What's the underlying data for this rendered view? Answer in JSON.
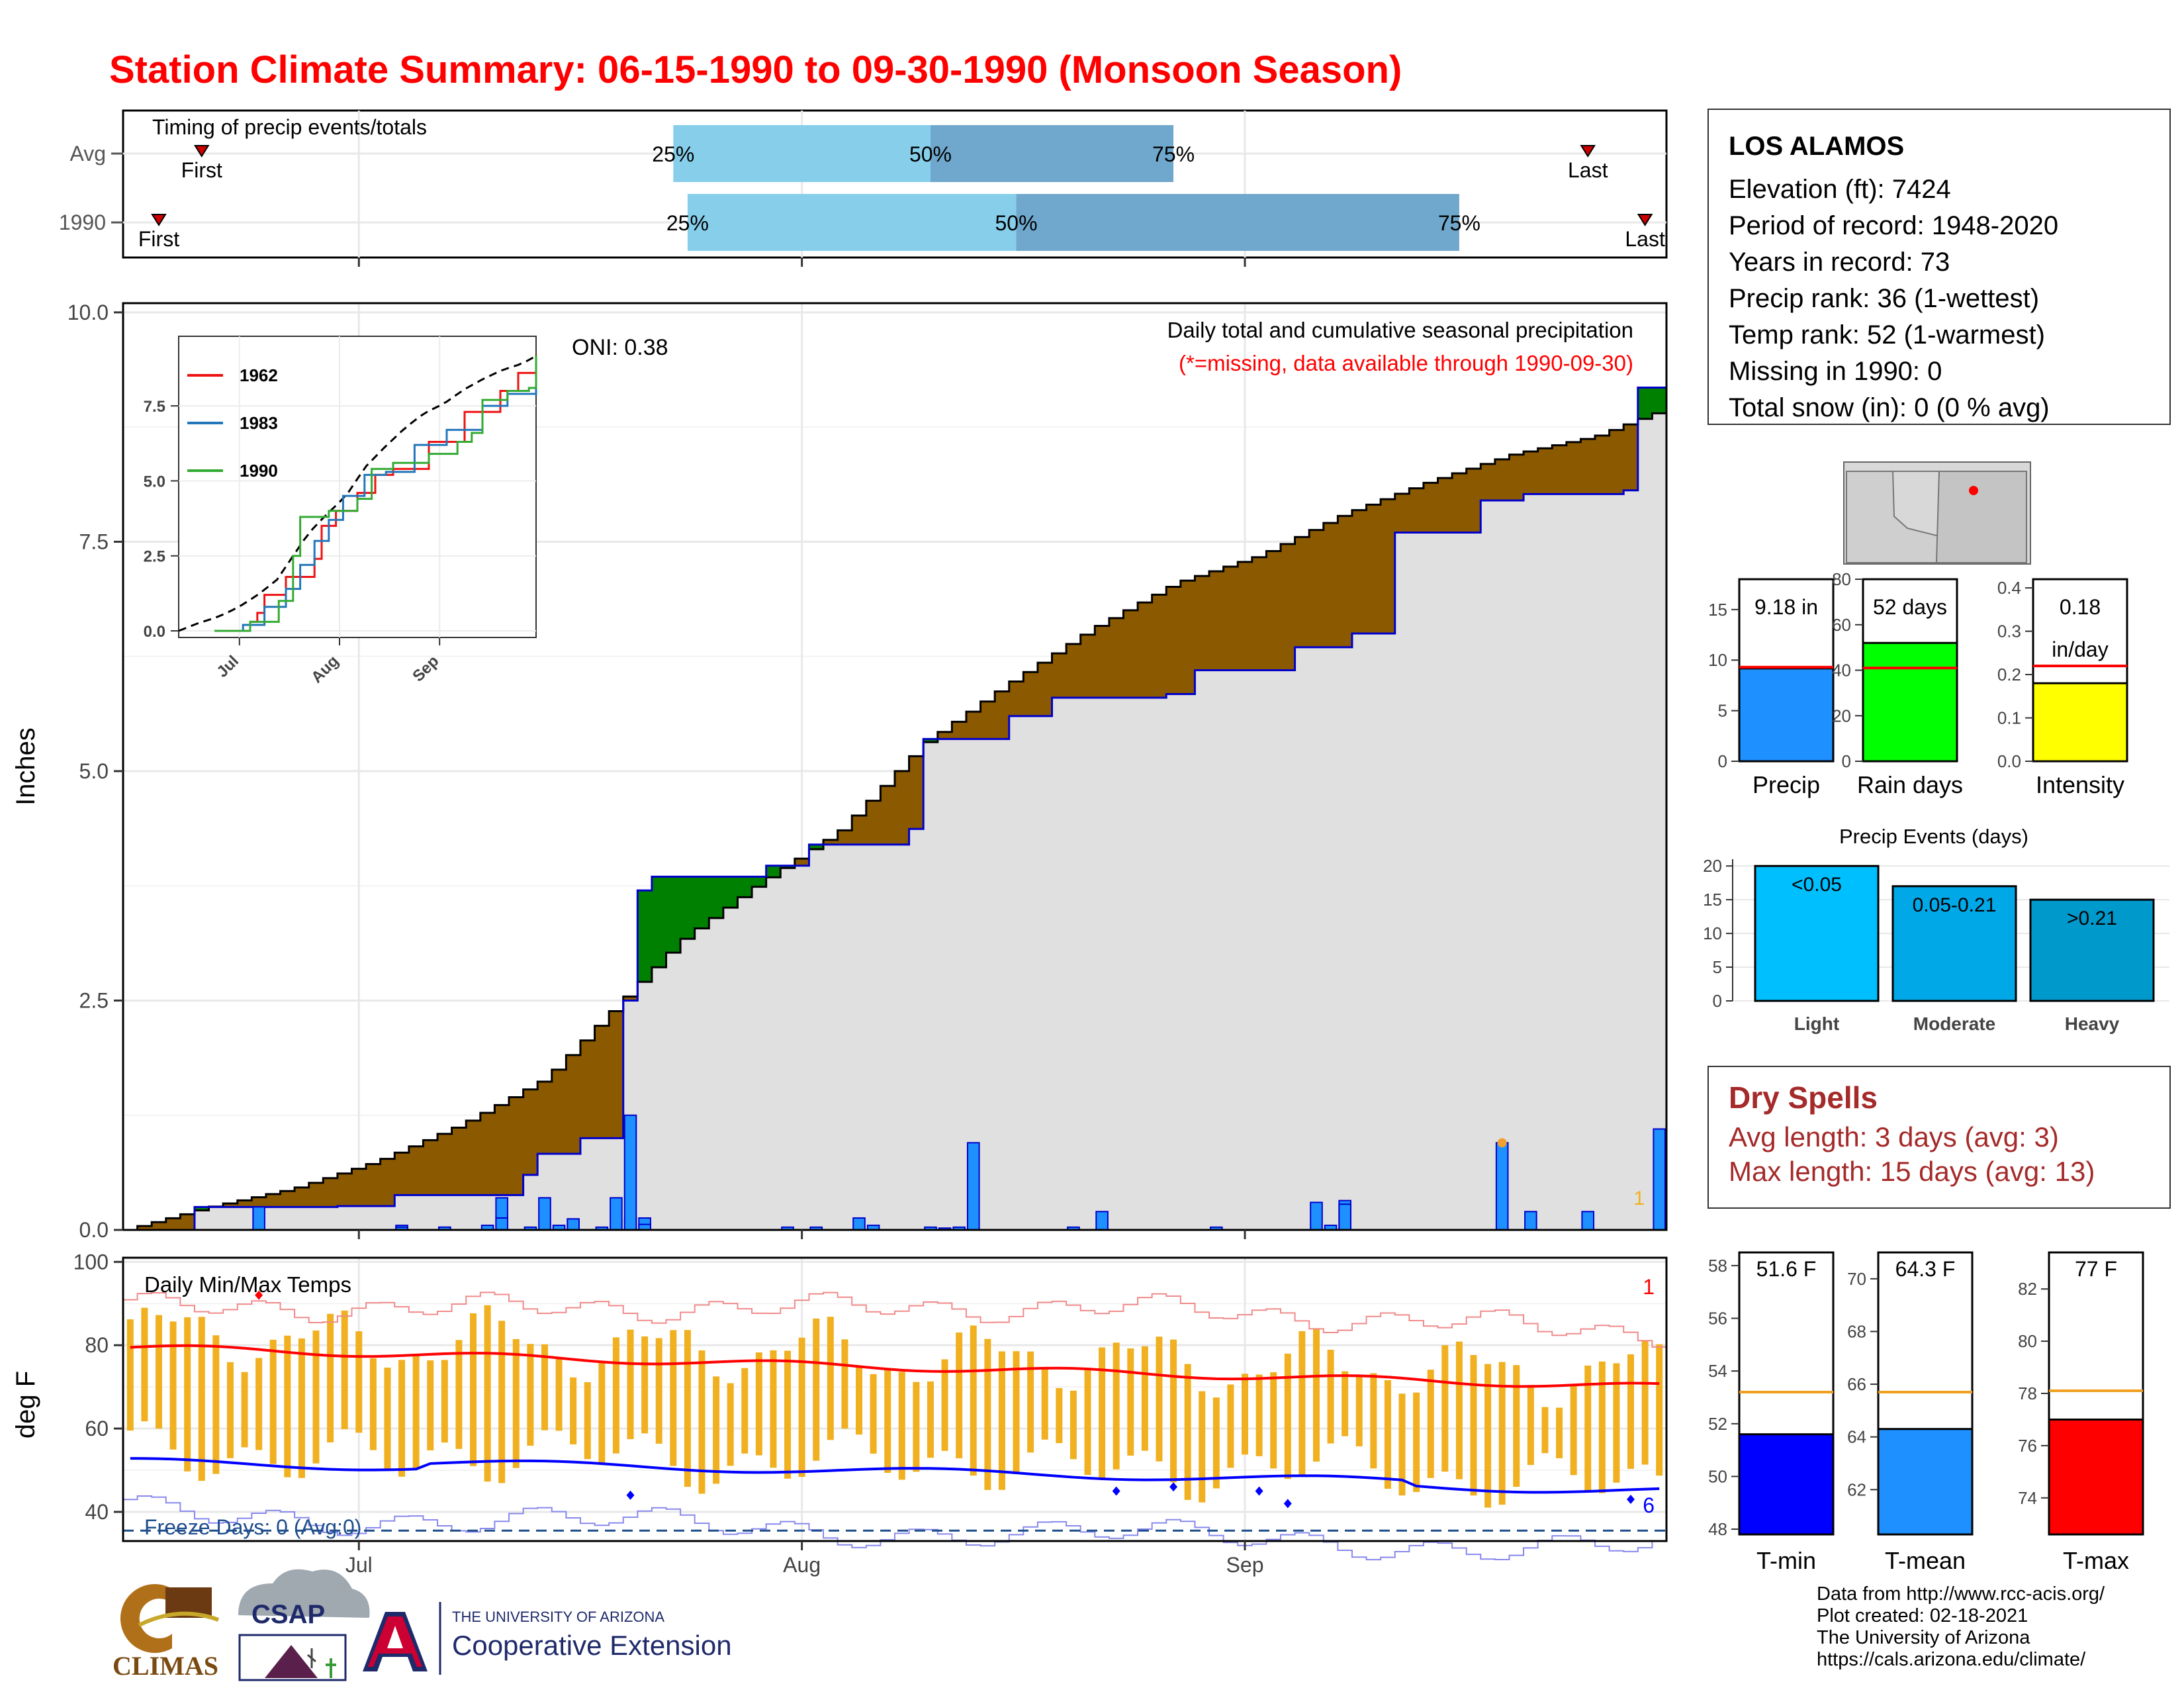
{
  "title": "Station Climate Summary: 06-15-1990 to 09-30-1990 (Monsoon Season)",
  "colors": {
    "title": "#ff0000",
    "cumulative_above": "#008000",
    "cumulative_below": "#8b5a00",
    "daily_bar": "#1e90ff",
    "bar_outline": "#0000cc",
    "timing_light": "#87ceeb",
    "timing_dark": "#6fa8cc",
    "avg_line": "#ff0000",
    "tmax_line": "#ff0000",
    "tmin_line": "#0000ff",
    "temp_range": "#f0b020",
    "rain_days_fill": "#00ff00",
    "intensity_fill": "#ffff00",
    "tmean_fill": "#1e90ff",
    "tmax_fill": "#ff0000",
    "tmin_fill": "#0000ff",
    "dry_spells": "#a52a2a",
    "freeze": "#1f4e8c"
  },
  "timing_panel": {
    "label": "Timing of precip events/totals",
    "rows": [
      {
        "name": "Avg",
        "first": "First",
        "last": "Last",
        "q25": "25%",
        "q50": "50%",
        "q75": "75%",
        "first_date": "1990-06-20",
        "q25_date": "1990-07-23",
        "q50_date": "1990-08-10",
        "q75_date": "1990-08-27",
        "last_date": "1990-09-25"
      },
      {
        "name": "1990",
        "first": "First",
        "last": "Last",
        "q25": "25%",
        "q50": "50%",
        "q75": "75%",
        "first_date": "1990-06-17",
        "q25_date": "1990-07-24",
        "q50_date": "1990-08-16",
        "q75_date": "1990-09-16",
        "last_date": "1990-09-29"
      }
    ]
  },
  "station": {
    "name": "LOS ALAMOS",
    "lines": [
      "Elevation (ft): 7424",
      "Period of record: 1948-2020",
      "Years in record: 73",
      "Precip rank: 36 (1-wettest)",
      "Temp rank: 52 (1-warmest)",
      "Missing in 1990: 0",
      "Total snow (in): 0 (0 % avg)"
    ]
  },
  "precip_panel": {
    "ylabel": "Inches",
    "yticks": [
      "0.0",
      "2.5",
      "5.0",
      "7.5",
      "10.0"
    ],
    "xticks": [
      "Jul",
      "Aug",
      "Sep"
    ],
    "oni": "ONI: 0.38",
    "note1": "Daily total and cumulative seasonal precipitation",
    "note2": "(*=missing, data available through 1990-09-30)",
    "rank_marker": "1"
  },
  "inset": {
    "yticks": [
      "0.0",
      "2.5",
      "5.0",
      "7.5"
    ],
    "xticks": [
      "Jul",
      "Aug",
      "Sep"
    ],
    "legend": [
      "1962",
      "1983",
      "1990"
    ]
  },
  "temp_panel": {
    "ylabel": "deg F",
    "label": "Daily Min/Max Temps",
    "freeze": "Freeze Days: 0 (Avg:0)",
    "yticks": [
      "40",
      "60",
      "80",
      "100"
    ],
    "xticks": [
      "Jul",
      "Aug",
      "Sep"
    ],
    "top_rank": "1",
    "bottom_rank": "6"
  },
  "summary_bars": [
    {
      "label": "Precip",
      "value_text": "9.18 in",
      "value": 9.18,
      "avg": 9.3,
      "ymax": 18,
      "yticks": [
        "0",
        "5",
        "10",
        "15"
      ]
    },
    {
      "label": "Rain days",
      "value_text": "52 days",
      "value": 52,
      "avg": 41,
      "ymax": 80,
      "yticks": [
        "0",
        "20",
        "40",
        "60",
        "80"
      ]
    },
    {
      "label": "Intensity",
      "value_text": "0.18",
      "value_text2": "in/day",
      "value": 0.18,
      "avg": 0.22,
      "ymax": 0.42,
      "yticks": [
        "0.0",
        "0.1",
        "0.2",
        "0.3",
        "0.4"
      ]
    }
  ],
  "events": {
    "title": "Precip Events (days)",
    "yticks": [
      "0",
      "5",
      "10",
      "15",
      "20"
    ],
    "bars": [
      {
        "label": "Light",
        "text": "<0.05",
        "value": 20
      },
      {
        "label": "Moderate",
        "text": "0.05-0.21",
        "value": 17
      },
      {
        "label": "Heavy",
        "text": ">0.21",
        "value": 15
      }
    ]
  },
  "dry_spells": {
    "title": "Dry Spells",
    "avg_line": "Avg length: 3 days (avg: 3)",
    "max_line": "Max length: 15 days (avg: 13)"
  },
  "temp_bars": [
    {
      "label": "T-min",
      "value_text": "51.6 F",
      "value": 51.6,
      "avg": 53.2,
      "ymin": 47.8,
      "ymax": 58.5,
      "yticks": [
        "48",
        "50",
        "52",
        "54",
        "56",
        "58"
      ]
    },
    {
      "label": "T-mean",
      "value_text": "64.3 F",
      "value": 64.3,
      "avg": 65.7,
      "ymin": 60.3,
      "ymax": 71,
      "yticks": [
        "62",
        "64",
        "66",
        "68",
        "70"
      ]
    },
    {
      "label": "T-max",
      "value_text": "77 F",
      "value": 77,
      "avg": 78.1,
      "ymin": 72.6,
      "ymax": 83.4,
      "yticks": [
        "74",
        "76",
        "78",
        "80",
        "82"
      ]
    }
  ],
  "logos": {
    "climas": "CLIMAS",
    "csap": "CSAP",
    "ua_top": "THE UNIVERSITY OF ARIZONA",
    "ua_bottom": "Cooperative Extension"
  },
  "credits": [
    "Data from http://www.rcc-acis.org/",
    "Plot created: 02-18-2021",
    "The University of Arizona",
    "https://cals.arizona.edu/climate/"
  ],
  "chart_data": [
    {
      "type": "bar",
      "title": "Timing of precip events/totals",
      "categories": [
        "Avg",
        "1990"
      ],
      "series": [
        {
          "name": "25%",
          "values": [
            "1990-07-23",
            "1990-07-24"
          ]
        },
        {
          "name": "50%",
          "values": [
            "1990-08-10",
            "1990-08-16"
          ]
        },
        {
          "name": "75%",
          "values": [
            "1990-08-27",
            "1990-09-16"
          ]
        }
      ]
    },
    {
      "type": "area",
      "title": "Daily total and cumulative seasonal precipitation",
      "ylabel": "Inches",
      "ylim": [
        0,
        10
      ],
      "x_range": [
        "1990-06-15",
        "1990-09-30"
      ],
      "cumulative_1990": [
        [
          0,
          0
        ],
        [
          8,
          0.25
        ],
        [
          25,
          0.26
        ],
        [
          32,
          0.38
        ],
        [
          46,
          0.6
        ],
        [
          49,
          0.83
        ],
        [
          54,
          1.0
        ],
        [
          58,
          1.25
        ],
        [
          59,
          2.5
        ],
        [
          61,
          3.7
        ],
        [
          62,
          3.85
        ],
        [
          75,
          3.97
        ],
        [
          80,
          4.2
        ],
        [
          92,
          4.37
        ],
        [
          95,
          5.35
        ],
        [
          104,
          5.6
        ],
        [
          109,
          5.8
        ],
        [
          123,
          5.84
        ],
        [
          126,
          6.1
        ],
        [
          139,
          6.35
        ],
        [
          146,
          6.5
        ],
        [
          150,
          7.6
        ],
        [
          160,
          7.95
        ],
        [
          165,
          8.02
        ],
        [
          178,
          8.06
        ],
        [
          179,
          9.18
        ],
        [
          182,
          9.18
        ]
      ],
      "cumulative_avg": [
        [
          0,
          0
        ],
        [
          10,
          0.25
        ],
        [
          20,
          0.45
        ],
        [
          30,
          0.75
        ],
        [
          40,
          1.15
        ],
        [
          50,
          1.65
        ],
        [
          58,
          2.4
        ],
        [
          66,
          3.15
        ],
        [
          75,
          3.75
        ],
        [
          85,
          4.35
        ],
        [
          95,
          5.3
        ],
        [
          105,
          5.95
        ],
        [
          115,
          6.55
        ],
        [
          125,
          7.05
        ],
        [
          135,
          7.35
        ],
        [
          145,
          7.8
        ],
        [
          155,
          8.15
        ],
        [
          165,
          8.45
        ],
        [
          175,
          8.65
        ],
        [
          182,
          8.9
        ]
      ],
      "daily_bars": [
        [
          16,
          0.25
        ],
        [
          32,
          0.05
        ],
        [
          33,
          0.03
        ],
        [
          37,
          0.03
        ],
        [
          38,
          0.03
        ],
        [
          43,
          0.05
        ],
        [
          44,
          0.35
        ],
        [
          45,
          0.13
        ],
        [
          48,
          0.03
        ],
        [
          49,
          0.35
        ],
        [
          51,
          0.05
        ],
        [
          52,
          0.12
        ],
        [
          53,
          0.12
        ],
        [
          56,
          0.03
        ],
        [
          58,
          0.35
        ],
        [
          59,
          0.13
        ],
        [
          60,
          1.25
        ],
        [
          61,
          0.13
        ],
        [
          62,
          0.06
        ],
        [
          78,
          0.03
        ],
        [
          81,
          0.03
        ],
        [
          87,
          0.13
        ],
        [
          89,
          0.05
        ],
        [
          95,
          0.03
        ],
        [
          97,
          0.02
        ],
        [
          98,
          0.03
        ],
        [
          100,
          0.95
        ],
        [
          112,
          0.03
        ],
        [
          116,
          0.2
        ],
        [
          129,
          0.03
        ],
        [
          142,
          0.3
        ],
        [
          143,
          0.05
        ],
        [
          144,
          0.32
        ],
        [
          145,
          0.28
        ],
        [
          164,
          0.95
        ],
        [
          167,
          0.2
        ],
        [
          173,
          0.2
        ],
        [
          182,
          1.1
        ]
      ]
    },
    {
      "type": "line",
      "title": "",
      "series": [
        {
          "name": "1962",
          "values": []
        },
        {
          "name": "1983",
          "values": []
        },
        {
          "name": "1990",
          "values": []
        }
      ]
    },
    {
      "type": "bar",
      "title": "Daily Min/Max Temps",
      "ylabel": "deg F",
      "ylim": [
        33,
        101
      ],
      "x_range": [
        "1990-06-15",
        "1990-09-30"
      ],
      "avg_tmax_start_end": [
        79,
        70
      ],
      "avg_tmin_start_end": [
        52,
        45
      ]
    },
    {
      "type": "bar",
      "title": "Precip Events (days)",
      "categories": [
        "Light",
        "Moderate",
        "Heavy"
      ],
      "values": [
        20,
        17,
        15
      ]
    }
  ]
}
